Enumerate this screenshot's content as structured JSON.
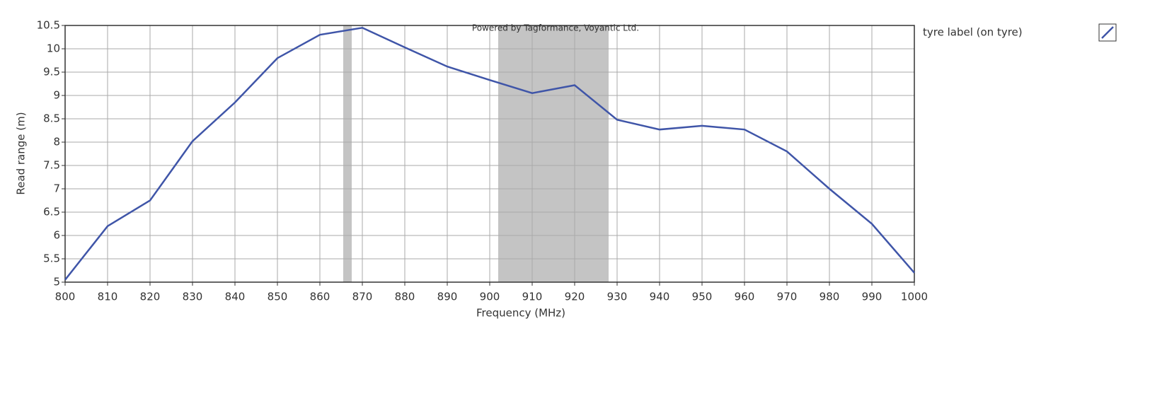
{
  "chart_data": {
    "type": "line",
    "x_label": "Frequency (MHz)",
    "y_label": "Read range (m)",
    "annotation": "Powered by Tagformance, Voyantic Ltd.",
    "x": [
      800,
      810,
      820,
      830,
      840,
      850,
      860,
      870,
      880,
      890,
      900,
      910,
      920,
      930,
      940,
      950,
      960,
      970,
      980,
      990,
      1000
    ],
    "series": [
      {
        "name": "tyre label (on tyre)",
        "color": "#3f55a8",
        "values": [
          5.05,
          6.2,
          6.75,
          8.02,
          8.85,
          9.8,
          10.3,
          10.45,
          10.03,
          9.62,
          9.33,
          9.05,
          9.22,
          8.48,
          8.27,
          8.35,
          8.27,
          7.8,
          7.0,
          6.25,
          5.2
        ]
      }
    ],
    "bands": [
      [
        865.5,
        867.5
      ],
      [
        902,
        928
      ]
    ],
    "band_color": "#c4c4c4",
    "xlim": [
      800,
      1000
    ],
    "xticks": [
      800,
      810,
      820,
      830,
      840,
      850,
      860,
      870,
      880,
      890,
      900,
      910,
      920,
      930,
      940,
      950,
      960,
      970,
      980,
      990,
      1000
    ],
    "ylim": [
      5,
      10.5
    ],
    "yticks": [
      5,
      5.5,
      6,
      6.5,
      7,
      7.5,
      8,
      8.5,
      9,
      9.5,
      10,
      10.5
    ],
    "grid": true,
    "legend": "right"
  }
}
